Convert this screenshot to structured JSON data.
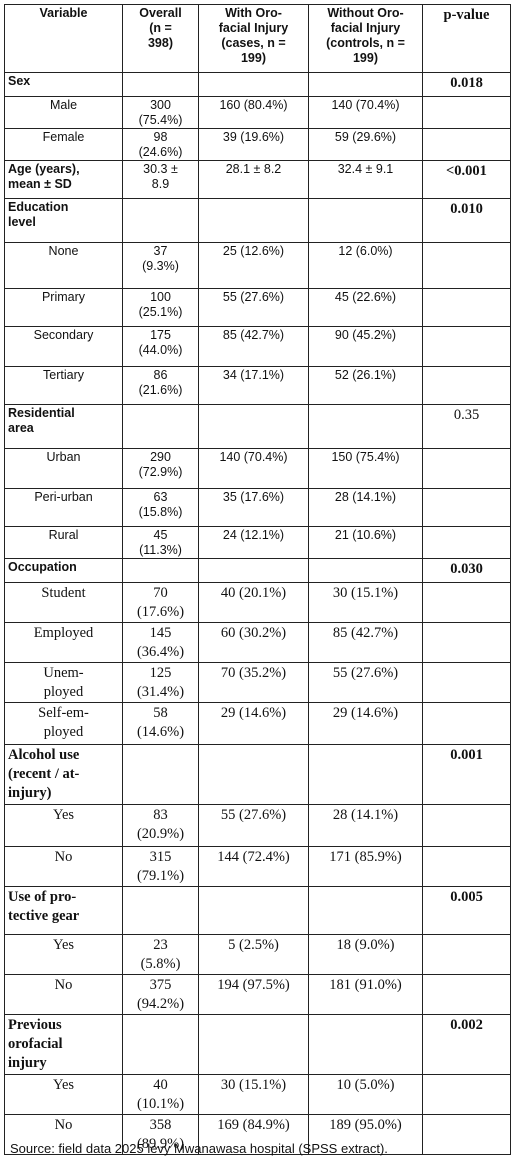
{
  "header": {
    "variable": "Variable",
    "overall": "Overall\n(n =\n398)",
    "cases": "With Oro-\nfacial Injury\n(cases, n =\n199)",
    "controls": "Without Oro-\nfacial Injury\n(controls, n =\n199)",
    "pvalue": "p-value"
  },
  "rows": [
    {
      "kind": "section",
      "label": "Sex",
      "overall": "",
      "cases": "",
      "controls": "",
      "p": "0.018",
      "pbold": true,
      "font": "sans",
      "h": 24
    },
    {
      "kind": "item",
      "label": "Male",
      "overall": "300\n(75.4%)",
      "cases": "160 (80.4%)",
      "controls": "140 (70.4%)",
      "p": "",
      "font": "sans",
      "h": 32
    },
    {
      "kind": "item",
      "label": "Female",
      "overall": "98\n(24.6%)",
      "cases": "39 (19.6%)",
      "controls": "59 (29.6%)",
      "p": "",
      "font": "sans",
      "h": 32
    },
    {
      "kind": "section",
      "label": "Age (years),\nmean ± SD",
      "overall": "30.3 ±\n8.9",
      "cases": "28.1 ± 8.2",
      "controls": "32.4 ± 9.1",
      "p": "<0.001",
      "pbold": true,
      "font": "sans",
      "h": 38
    },
    {
      "kind": "section",
      "label": "Education\nlevel",
      "overall": "",
      "cases": "",
      "controls": "",
      "p": "0.010",
      "pbold": true,
      "font": "sans",
      "h": 44
    },
    {
      "kind": "item",
      "label": "None",
      "overall": "37\n(9.3%)",
      "cases": "25 (12.6%)",
      "controls": "12 (6.0%)",
      "p": "",
      "font": "sans",
      "h": 46
    },
    {
      "kind": "item",
      "label": "Primary",
      "overall": "100\n(25.1%)",
      "cases": "55 (27.6%)",
      "controls": "45 (22.6%)",
      "p": "",
      "font": "sans",
      "h": 38
    },
    {
      "kind": "item",
      "label": "Secondary",
      "overall": "175\n(44.0%)",
      "cases": "85 (42.7%)",
      "controls": "90 (45.2%)",
      "p": "",
      "font": "sans",
      "h": 40
    },
    {
      "kind": "item",
      "label": "Tertiary",
      "overall": "86\n(21.6%)",
      "cases": "34 (17.1%)",
      "controls": "52 (26.1%)",
      "p": "",
      "font": "sans",
      "h": 38
    },
    {
      "kind": "section",
      "label": "Residential\narea",
      "overall": "",
      "cases": "",
      "controls": "",
      "p": "0.35",
      "pbold": false,
      "font": "sans",
      "h": 44
    },
    {
      "kind": "item",
      "label": "Urban",
      "overall": "290\n(72.9%)",
      "cases": "140 (70.4%)",
      "controls": "150 (75.4%)",
      "p": "",
      "font": "sans",
      "h": 40
    },
    {
      "kind": "item",
      "label": "Peri-urban",
      "overall": "63\n(15.8%)",
      "cases": "35 (17.6%)",
      "controls": "28 (14.1%)",
      "p": "",
      "font": "sans",
      "h": 38
    },
    {
      "kind": "item",
      "label": "Rural",
      "overall": "45\n(11.3%)",
      "cases": "24 (12.1%)",
      "controls": "21 (10.6%)",
      "p": "",
      "font": "sans",
      "h": 32
    },
    {
      "kind": "section",
      "label": "Occupation",
      "overall": "",
      "cases": "",
      "controls": "",
      "p": "0.030",
      "pbold": true,
      "font": "sans",
      "h": 24
    },
    {
      "kind": "item",
      "label": "Student",
      "overall": "70\n(17.6%)",
      "cases": "40 (20.1%)",
      "controls": "30 (15.1%)",
      "p": "",
      "font": "serif",
      "h": 36
    },
    {
      "kind": "item",
      "label": "Employed",
      "overall": "145\n(36.4%)",
      "cases": "60 (30.2%)",
      "controls": "85 (42.7%)",
      "p": "",
      "font": "serif",
      "h": 34
    },
    {
      "kind": "item",
      "label": "Unem-\nployed",
      "overall": "125\n(31.4%)",
      "cases": "70 (35.2%)",
      "controls": "55 (27.6%)",
      "p": "",
      "font": "serif",
      "h": 40
    },
    {
      "kind": "item",
      "label": "Self-em-\nployed",
      "overall": "58\n(14.6%)",
      "cases": "29 (14.6%)",
      "controls": "29 (14.6%)",
      "p": "",
      "font": "serif",
      "h": 42
    },
    {
      "kind": "section",
      "label": "Alcohol use\n(recent / at-\ninjury)",
      "overall": "",
      "cases": "",
      "controls": "",
      "p": "0.001",
      "pbold": true,
      "font": "serif",
      "h": 60
    },
    {
      "kind": "item",
      "label": "Yes",
      "overall": "83\n(20.9%)",
      "cases": "55 (27.6%)",
      "controls": "28 (14.1%)",
      "p": "",
      "font": "serif",
      "h": 42
    },
    {
      "kind": "item",
      "label": "No",
      "overall": "315\n(79.1%)",
      "cases": "144 (72.4%)",
      "controls": "171 (85.9%)",
      "p": "",
      "font": "serif",
      "h": 32
    },
    {
      "kind": "section",
      "label": "Use of pro-\ntective gear",
      "overall": "",
      "cases": "",
      "controls": "",
      "p": "0.005",
      "pbold": true,
      "font": "serif",
      "h": 48
    },
    {
      "kind": "item",
      "label": "Yes",
      "overall": "23\n(5.8%)",
      "cases": "5 (2.5%)",
      "controls": "18 (9.0%)",
      "p": "",
      "font": "serif",
      "h": 40
    },
    {
      "kind": "item",
      "label": "No",
      "overall": "375\n(94.2%)",
      "cases": "194 (97.5%)",
      "controls": "181 (91.0%)",
      "p": "",
      "font": "serif",
      "h": 34
    },
    {
      "kind": "section",
      "label": "Previous\norofacial\ninjury",
      "overall": "",
      "cases": "",
      "controls": "",
      "p": "0.002",
      "pbold": true,
      "font": "serif",
      "h": 60
    },
    {
      "kind": "item",
      "label": "Yes",
      "overall": "40\n(10.1%)",
      "cases": "30 (15.1%)",
      "controls": "10 (5.0%)",
      "p": "",
      "font": "serif",
      "h": 32
    },
    {
      "kind": "item",
      "label": "No",
      "overall": "358\n(89.9%)",
      "cases": "169 (84.9%)",
      "controls": "189 (95.0%)",
      "p": "",
      "font": "serif",
      "h": 38
    }
  ],
  "source": "Source:  field data 2025 levy Mwanawasa hospital (SPSS extract)."
}
